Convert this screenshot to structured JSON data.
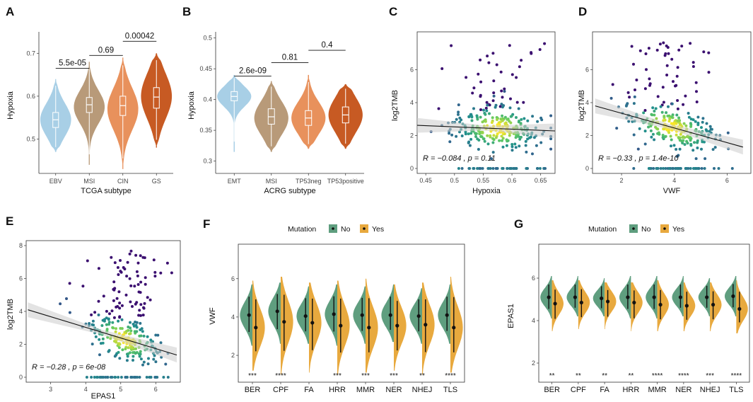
{
  "colors": {
    "violin_subtype": [
      "#a8cfe6",
      "#b89a79",
      "#e8915c",
      "#c75a23"
    ],
    "no": "#5f9e7f",
    "yes": "#e8a93e",
    "point_low": "#3b0f70",
    "point_mid": "#21918c",
    "point_high": "#fde725",
    "band": "#cccccc"
  },
  "chart_data": [
    {
      "panel": "A",
      "type": "violin",
      "xlabel": "TCGA subtype",
      "ylabel": "Hypoxia",
      "ylim": [
        0.42,
        0.75
      ],
      "yticks": [
        0.5,
        0.6,
        0.7
      ],
      "categories": [
        "EBV",
        "MSI",
        "CIN",
        "GS"
      ],
      "groups": [
        {
          "q1": 0.527,
          "median": 0.545,
          "q3": 0.562,
          "min": 0.47,
          "max": 0.64,
          "mode": 0.545
        },
        {
          "q1": 0.562,
          "median": 0.58,
          "q3": 0.597,
          "min": 0.44,
          "max": 0.68,
          "mode": 0.575
        },
        {
          "q1": 0.555,
          "median": 0.578,
          "q3": 0.6,
          "min": 0.43,
          "max": 0.69,
          "mode": 0.57
        },
        {
          "q1": 0.572,
          "median": 0.598,
          "q3": 0.62,
          "min": 0.48,
          "max": 0.7,
          "mode": 0.6
        }
      ],
      "comparisons": [
        {
          "from": 0,
          "to": 1,
          "label": "5.5e-05",
          "y": 0.665
        },
        {
          "from": 1,
          "to": 2,
          "label": "0.69",
          "y": 0.695
        },
        {
          "from": 2,
          "to": 3,
          "label": "0.00042",
          "y": 0.728
        }
      ]
    },
    {
      "panel": "B",
      "type": "violin",
      "xlabel": "ACRG subtype",
      "ylabel": "Hypoxia",
      "ylim": [
        0.28,
        0.51
      ],
      "yticks": [
        0.3,
        0.35,
        0.4,
        0.45,
        0.5
      ],
      "categories": [
        "EMT",
        "MSI",
        "TP53neg",
        "TP53positive"
      ],
      "groups": [
        {
          "q1": 0.398,
          "median": 0.405,
          "q3": 0.413,
          "min": 0.315,
          "max": 0.44,
          "mode": 0.405
        },
        {
          "q1": 0.36,
          "median": 0.372,
          "q3": 0.385,
          "min": 0.315,
          "max": 0.43,
          "mode": 0.37
        },
        {
          "q1": 0.358,
          "median": 0.37,
          "q3": 0.382,
          "min": 0.32,
          "max": 0.44,
          "mode": 0.37
        },
        {
          "q1": 0.362,
          "median": 0.375,
          "q3": 0.388,
          "min": 0.32,
          "max": 0.425,
          "mode": 0.375
        }
      ],
      "comparisons": [
        {
          "from": 0,
          "to": 1,
          "label": "2.6e-09",
          "y": 0.438
        },
        {
          "from": 1,
          "to": 2,
          "label": "0.81",
          "y": 0.46
        },
        {
          "from": 2,
          "to": 3,
          "label": "0.4",
          "y": 0.48
        }
      ]
    },
    {
      "panel": "C",
      "type": "scatter",
      "xlabel": "Hypoxia",
      "ylabel": "log2TMB",
      "xlim": [
        0.435,
        0.675
      ],
      "ylim": [
        -0.3,
        8.3
      ],
      "xticks": [
        0.45,
        0.5,
        0.55,
        0.6,
        0.65
      ],
      "yticks": [
        0,
        2,
        4,
        6
      ],
      "fit": {
        "x0": 0.435,
        "y0": 2.62,
        "x1": 0.675,
        "y1": 2.28
      },
      "annotation": "R = −0.084 , p = 0.11",
      "points_shape": {
        "n": 320,
        "xmean": 0.575,
        "xsd": 0.04,
        "ymean": 2.2,
        "ysd": 0.75,
        "zero_frac": 0.12,
        "high_frac": 0.17
      }
    },
    {
      "panel": "D",
      "type": "scatter",
      "xlabel": "VWF",
      "ylabel": "log2TMB",
      "xlim": [
        0.9,
        6.9
      ],
      "ylim": [
        -0.3,
        8.3
      ],
      "xticks": [
        2,
        4,
        6
      ],
      "yticks": [
        0,
        2,
        4,
        6
      ],
      "fit": {
        "x0": 1.0,
        "y0": 3.8,
        "x1": 6.6,
        "y1": 1.3
      },
      "annotation": "R = −0.33 , p = 1.4e-10",
      "points_shape": {
        "n": 320,
        "xmean": 3.9,
        "xsd": 0.9,
        "ymean": 2.2,
        "ysd": 0.7,
        "zero_frac": 0.12,
        "high_frac": 0.2
      }
    },
    {
      "panel": "E",
      "type": "scatter",
      "xlabel": "EPAS1",
      "ylabel": "log2TMB",
      "xlim": [
        2.3,
        6.7
      ],
      "ylim": [
        -0.3,
        8.3
      ],
      "xticks": [
        3,
        4,
        5,
        6
      ],
      "yticks": [
        0,
        2,
        4,
        6,
        8
      ],
      "fit": {
        "x0": 2.35,
        "y0": 4.1,
        "x1": 6.6,
        "y1": 1.35
      },
      "annotation": "R = −0.28 , p = 6e-08",
      "points_shape": {
        "n": 320,
        "xmean": 5.1,
        "xsd": 0.55,
        "ymean": 2.1,
        "ysd": 0.7,
        "zero_frac": 0.12,
        "high_frac": 0.2
      }
    },
    {
      "panel": "F",
      "type": "split-violin",
      "xlabel": "",
      "ylabel": "VWF",
      "ylim": [
        0.6,
        7.8
      ],
      "yticks": [
        2,
        4,
        6
      ],
      "legend": {
        "title": "Mutation",
        "entries": [
          "No",
          "Yes"
        ]
      },
      "categories": [
        "BER",
        "CPF",
        "FA",
        "HRR",
        "MMR",
        "NER",
        "NHEJ",
        "TLS"
      ],
      "significance": [
        "***",
        "****",
        "",
        "***",
        "***",
        "***",
        "**",
        "****"
      ],
      "no_median": [
        4.1,
        4.3,
        4.05,
        4.15,
        4.1,
        4.1,
        4.05,
        4.1
      ],
      "yes_median": [
        3.45,
        3.75,
        3.7,
        3.55,
        3.45,
        3.55,
        3.6,
        3.45
      ],
      "no_range": [
        [
          2.5,
          5.7
        ],
        [
          2.6,
          5.8
        ],
        [
          2.6,
          5.6
        ],
        [
          2.5,
          5.7
        ],
        [
          2.6,
          5.6
        ],
        [
          2.7,
          5.7
        ],
        [
          2.6,
          5.5
        ],
        [
          2.6,
          5.7
        ]
      ],
      "yes_range": [
        [
          1.2,
          5.9
        ],
        [
          1.0,
          6.1
        ],
        [
          1.1,
          5.8
        ],
        [
          1.0,
          5.9
        ],
        [
          1.1,
          6.0
        ],
        [
          1.2,
          5.7
        ],
        [
          1.0,
          5.8
        ],
        [
          1.1,
          6.1
        ]
      ]
    },
    {
      "panel": "G",
      "type": "split-violin",
      "xlabel": "",
      "ylabel": "EPAS1",
      "ylim": [
        1.1,
        7.6
      ],
      "yticks": [
        2,
        4,
        6
      ],
      "legend": {
        "title": "Mutation",
        "entries": [
          "No",
          "Yes"
        ]
      },
      "categories": [
        "BER",
        "CPF",
        "FA",
        "HRR",
        "MMR",
        "NER",
        "NHEJ",
        "TLS"
      ],
      "significance": [
        "**",
        "**",
        "**",
        "**",
        "****",
        "****",
        "***",
        "****"
      ],
      "no_median": [
        5.1,
        5.1,
        5.05,
        5.1,
        5.1,
        5.1,
        5.1,
        5.15
      ],
      "yes_median": [
        4.8,
        4.85,
        4.9,
        4.85,
        4.75,
        4.7,
        4.75,
        4.55
      ],
      "no_range": [
        [
          4.1,
          6.1
        ],
        [
          4.2,
          6.1
        ],
        [
          4.2,
          6.0
        ],
        [
          4.1,
          6.1
        ],
        [
          4.1,
          6.1
        ],
        [
          4.2,
          6.1
        ],
        [
          4.2,
          6.0
        ],
        [
          4.2,
          6.1
        ]
      ],
      "yes_range": [
        [
          3.5,
          5.9
        ],
        [
          3.6,
          5.9
        ],
        [
          3.6,
          5.8
        ],
        [
          3.5,
          5.8
        ],
        [
          3.5,
          5.9
        ],
        [
          3.5,
          5.8
        ],
        [
          3.5,
          5.8
        ],
        [
          3.4,
          5.9
        ]
      ]
    }
  ]
}
